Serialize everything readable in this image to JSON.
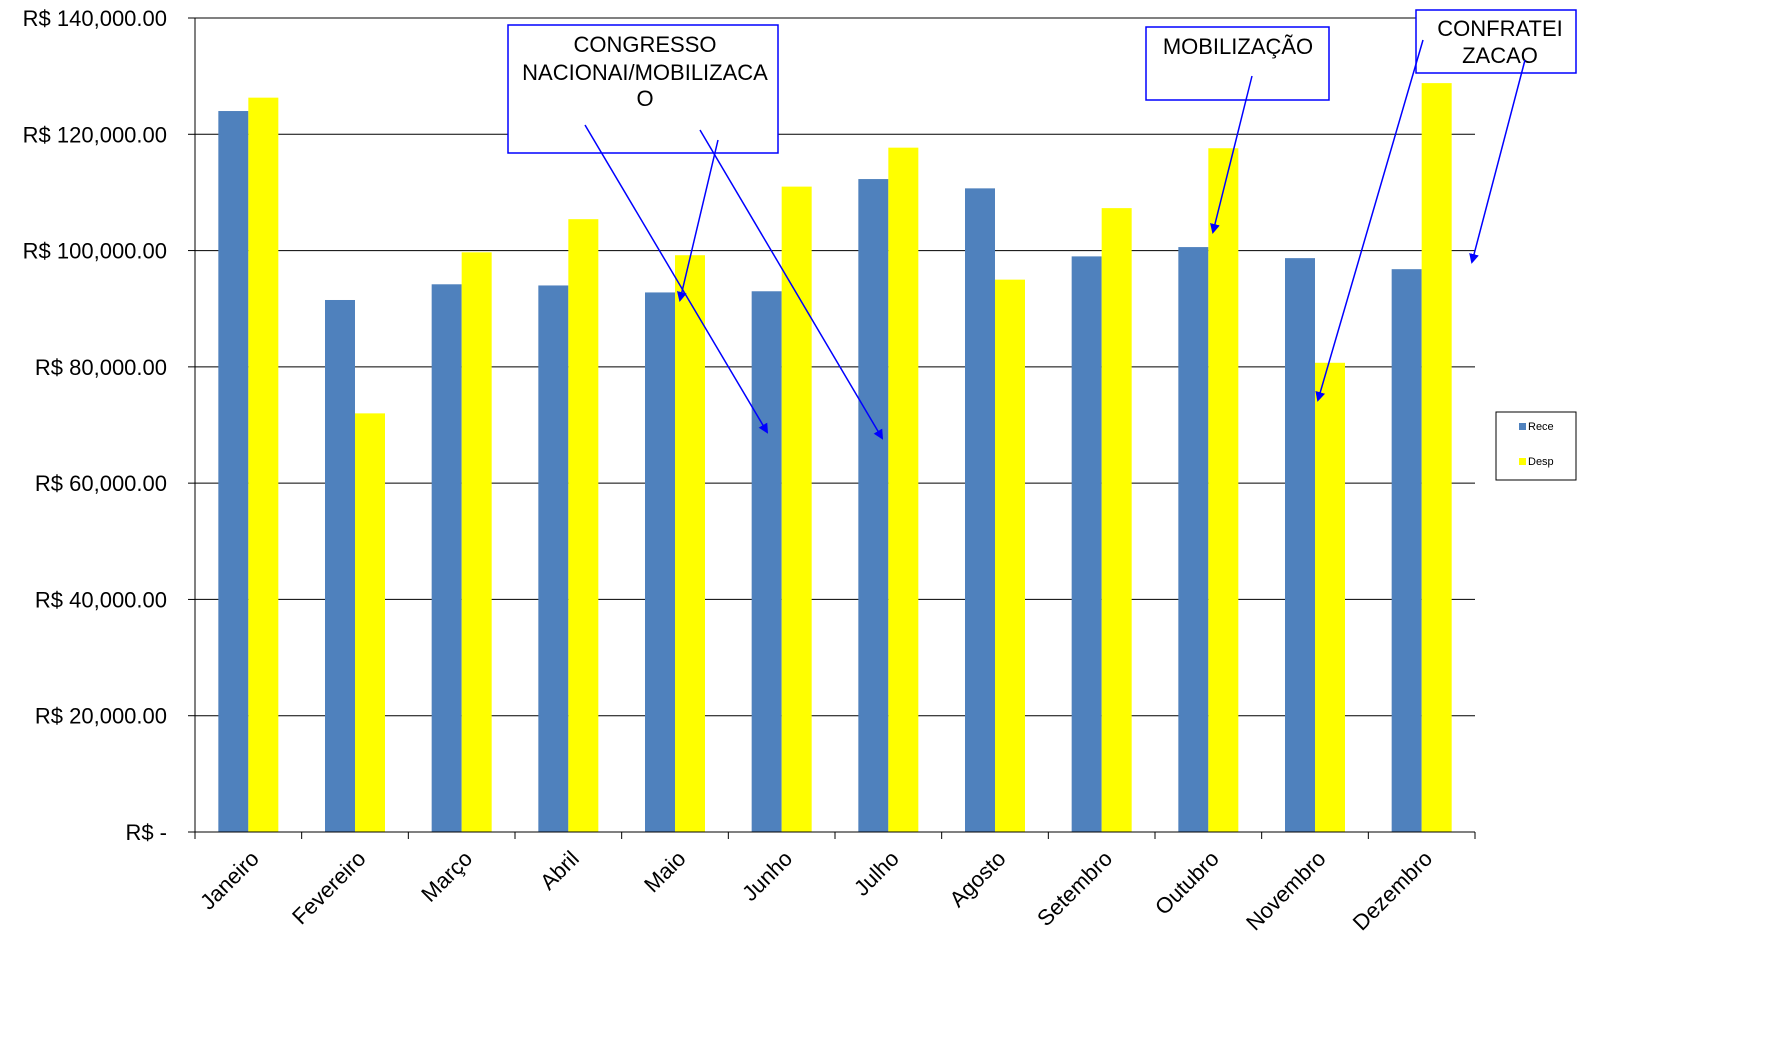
{
  "chart_data": {
    "type": "bar",
    "categories": [
      "Janeiro",
      "Fevereiro",
      "Março",
      "Abril",
      "Maio",
      "Junho",
      "Julho",
      "Agosto",
      "Setembro",
      "Outubro",
      "Novembro",
      "Dezembro"
    ],
    "series": [
      {
        "name": "Rece",
        "color": "#4f81bd",
        "values": [
          124000,
          91500,
          94200,
          94000,
          92800,
          93000,
          112300,
          110700,
          99000,
          100600,
          98700,
          96800
        ]
      },
      {
        "name": "Desp",
        "color": "#ffff00",
        "values": [
          126300,
          72000,
          99700,
          105400,
          99200,
          111000,
          117700,
          95000,
          107300,
          117600,
          80700,
          128800
        ]
      }
    ],
    "yticks": [
      "R$ -",
      "R$ 20,000.00",
      "R$ 40,000.00",
      "R$ 60,000.00",
      "R$ 80,000.00",
      "R$ 100,000.00",
      "R$ 120,000.00",
      "R$ 140,000.00"
    ],
    "ylim": [
      0,
      140000
    ],
    "title": "",
    "xlabel": "",
    "ylabel": "",
    "grid": true,
    "legend_position": "right",
    "annotations": [
      {
        "lines": [
          "CONGRESSO",
          "NACIONAI/MOBILIZACA",
          "O"
        ]
      },
      {
        "lines": [
          "MOBILIZAÇÃO"
        ]
      },
      {
        "lines": [
          "CONFRATEI",
          "ZACAO"
        ]
      }
    ],
    "annotation_color": "#0000ff"
  }
}
